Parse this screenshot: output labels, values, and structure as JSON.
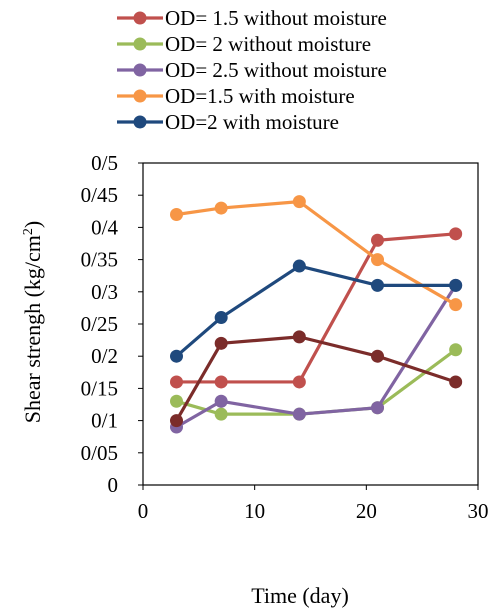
{
  "chart_data": {
    "type": "line",
    "xlabel": "Time (day)",
    "ylabel_main": "Shear strengh (kg/cm",
    "ylabel_sup": "2",
    "ylabel_close": ")",
    "xlim": [
      0,
      30
    ],
    "ylim": [
      0,
      0.5
    ],
    "x_ticks": [
      {
        "value": 0,
        "label": "0"
      },
      {
        "value": 10,
        "label": "10"
      },
      {
        "value": 20,
        "label": "20"
      },
      {
        "value": 30,
        "label": "30"
      }
    ],
    "y_ticks": [
      {
        "value": 0,
        "label": "0"
      },
      {
        "value": 0.05,
        "label": "0/05"
      },
      {
        "value": 0.1,
        "label": "0/1"
      },
      {
        "value": 0.15,
        "label": "0/15"
      },
      {
        "value": 0.2,
        "label": "0/2"
      },
      {
        "value": 0.25,
        "label": "0/25"
      },
      {
        "value": 0.3,
        "label": "0/3"
      },
      {
        "value": 0.35,
        "label": "0/35"
      },
      {
        "value": 0.4,
        "label": "0/4"
      },
      {
        "value": 0.45,
        "label": "0/45"
      },
      {
        "value": 0.5,
        "label": "0/5"
      }
    ],
    "grid": false,
    "legend_position": "top",
    "series": [
      {
        "name": "OD= 1.5 without moisture",
        "color": "#c0504d",
        "legend": true,
        "x": [
          3,
          7,
          14,
          21,
          28
        ],
        "values": [
          0.16,
          0.16,
          0.16,
          0.38,
          0.39
        ]
      },
      {
        "name": "OD= 2 without moisture",
        "color": "#9bbb59",
        "legend": true,
        "x": [
          3,
          7,
          14,
          21,
          28
        ],
        "values": [
          0.13,
          0.11,
          0.11,
          0.12,
          0.21
        ]
      },
      {
        "name": "OD= 2.5 without moisture",
        "color": "#8064a2",
        "legend": true,
        "x": [
          3,
          7,
          14,
          21,
          28
        ],
        "values": [
          0.09,
          0.13,
          0.11,
          0.12,
          0.31
        ]
      },
      {
        "name": "OD=1.5 with moisture",
        "color": "#f79646",
        "legend": true,
        "x": [
          3,
          7,
          14,
          21,
          28
        ],
        "values": [
          0.42,
          0.43,
          0.44,
          0.35,
          0.28
        ]
      },
      {
        "name": "OD=2 with moisture",
        "color": "#1f497d",
        "legend": true,
        "x": [
          3,
          7,
          14,
          21,
          28
        ],
        "values": [
          0.2,
          0.26,
          0.34,
          0.31,
          0.31
        ]
      },
      {
        "color": "#7b2c2a",
        "legend": false,
        "x": [
          3,
          7,
          14,
          21,
          28
        ],
        "values": [
          0.1,
          0.22,
          0.23,
          0.2,
          0.16
        ]
      }
    ]
  }
}
